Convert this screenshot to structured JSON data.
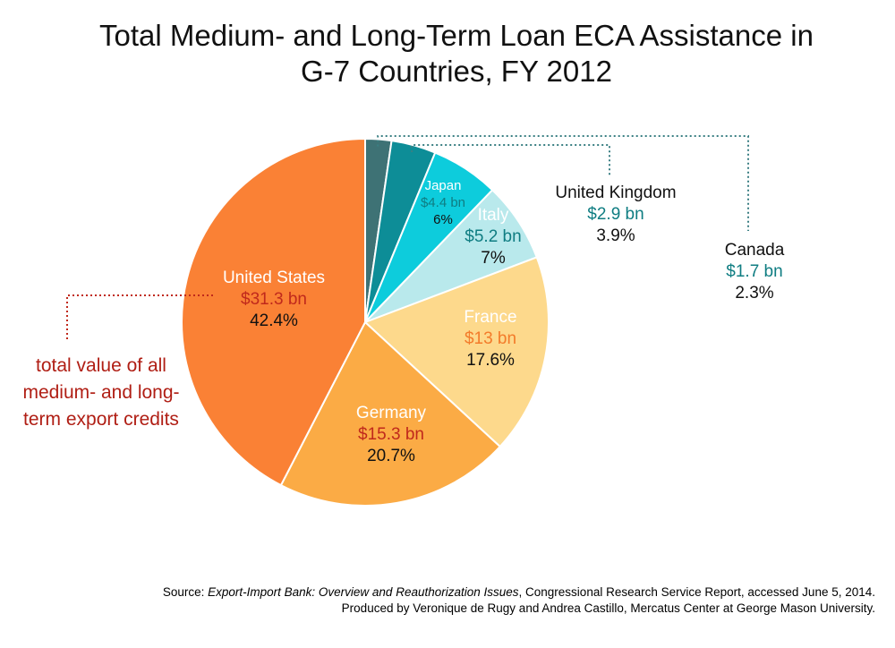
{
  "chart_data": {
    "type": "pie",
    "title_lines": [
      "Total Medium- and Long-Term Loan ECA Assistance in",
      "G-7 Countries, FY 2012"
    ],
    "slices": [
      {
        "name": "Canada",
        "amount": "$1.7 bn",
        "value": 1.7,
        "percent": "2.3%",
        "color": "#3e7275"
      },
      {
        "name": "United Kingdom",
        "amount": "$2.9 bn",
        "value": 2.9,
        "percent": "3.9%",
        "color": "#0d8d97"
      },
      {
        "name": "Japan",
        "amount": "$4.4 bn",
        "value": 4.4,
        "percent": "6%",
        "color": "#0dccdc"
      },
      {
        "name": "Italy",
        "amount": "$5.2 bn",
        "value": 5.2,
        "percent": "7%",
        "color": "#b9e9ec"
      },
      {
        "name": "France",
        "amount": "$13 bn",
        "value": 13,
        "percent": "17.6%",
        "color": "#fdd98c"
      },
      {
        "name": "Germany",
        "amount": "$15.3 bn",
        "value": 15.3,
        "percent": "20.7%",
        "color": "#fbab45"
      },
      {
        "name": "United States",
        "amount": "$31.3 bn",
        "value": 31.3,
        "percent": "42.4%",
        "color": "#fa8135"
      }
    ],
    "annotation": "total value of all medium- and long-term export credits"
  },
  "colors": {
    "name_on_slice": "#ffffff",
    "amount_teal": "#0f7d82",
    "amount_red": "#c0291c",
    "amount_orange": "#f37b2a",
    "leader_teal": "#3a7f83",
    "leader_red": "#c0291c",
    "annotation": "#b01e14"
  },
  "source": {
    "prefix": "Source: ",
    "report_title": "Export-Import Bank: Overview and Reauthorization Issues",
    "suffix": ", Congressional Research Service Report, accessed June 5, 2014.",
    "credit": "Produced by Veronique de Rugy and Andrea Castillo, Mercatus Center at George Mason University."
  }
}
